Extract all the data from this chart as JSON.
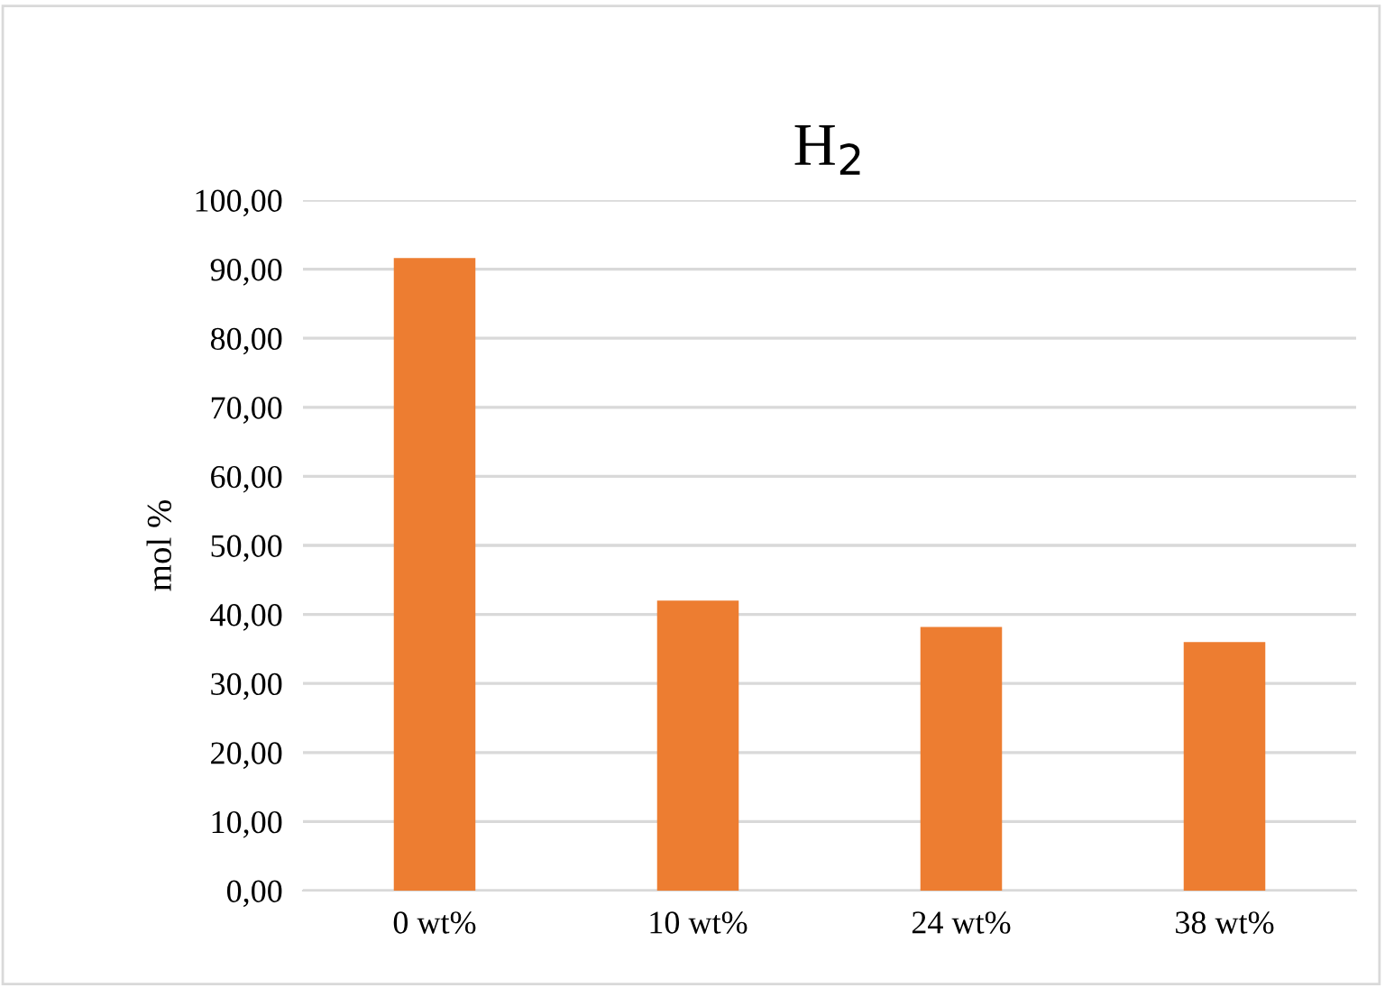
{
  "chart_data": {
    "type": "bar",
    "title": "H$_{2}$",
    "ylabel": "mol %",
    "categories": [
      "0 wt%",
      "10 wt%",
      "24 wt%",
      "38 wt%"
    ],
    "values": [
      91.6,
      42.0,
      38.2,
      36.0
    ],
    "color": "#ed7d31",
    "ylim": [
      0,
      100
    ],
    "yticks": [
      {
        "value": 0,
        "label": "0,00"
      },
      {
        "value": 10,
        "label": "10,00"
      },
      {
        "value": 20,
        "label": "20,00"
      },
      {
        "value": 30,
        "label": "30,00"
      },
      {
        "value": 40,
        "label": "40,00"
      },
      {
        "value": 50,
        "label": "50,00"
      },
      {
        "value": 60,
        "label": "60,00"
      },
      {
        "value": 70,
        "label": "70,00"
      },
      {
        "value": 80,
        "label": "80,00"
      },
      {
        "value": 90,
        "label": "90,00"
      },
      {
        "value": 100,
        "label": "100,00"
      }
    ],
    "grid": "y",
    "legend": false
  }
}
